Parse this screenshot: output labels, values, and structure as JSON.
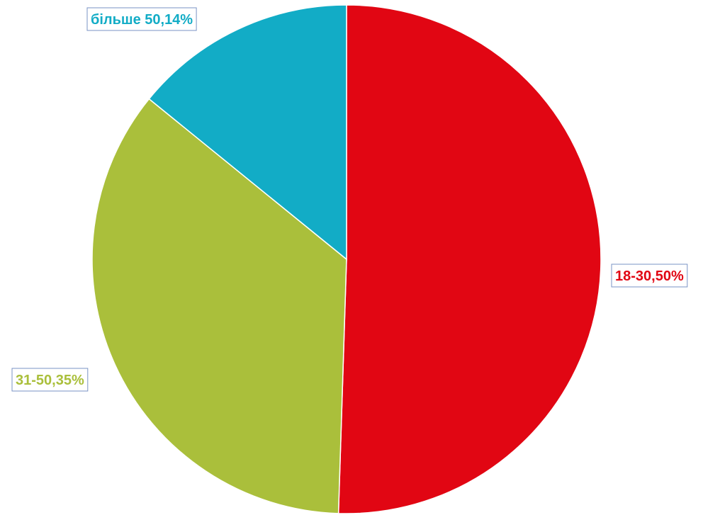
{
  "chart_data": {
    "type": "pie",
    "title": "",
    "start": "top",
    "direction": "clockwise",
    "slices": [
      {
        "label": "18-30,50%",
        "value": 50,
        "color": "#e10613"
      },
      {
        "label": "31-50,35%",
        "value": 35,
        "color": "#aabf3b"
      },
      {
        "label": "більше 50,14%",
        "value": 14,
        "color": "#12acc6"
      }
    ]
  }
}
